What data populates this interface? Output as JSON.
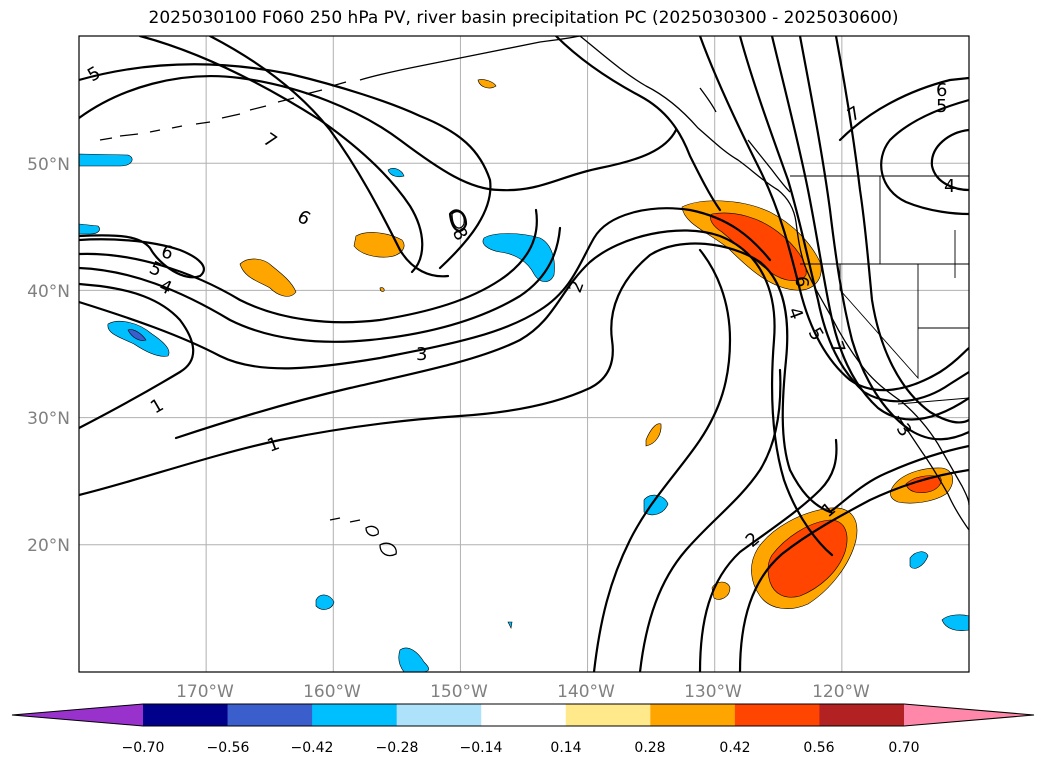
{
  "title": "2025030100 F060 250 hPa PV, river basin precipitation PC (2025030300 - 2025030600)",
  "map": {
    "lon_range": [
      -180,
      -110
    ],
    "lat_range": [
      10,
      60
    ],
    "lon_ticks": [
      {
        "value": -170,
        "label": "170°W"
      },
      {
        "value": -160,
        "label": "160°W"
      },
      {
        "value": -150,
        "label": "150°W"
      },
      {
        "value": -140,
        "label": "140°W"
      },
      {
        "value": -130,
        "label": "130°W"
      },
      {
        "value": -120,
        "label": "120°W"
      }
    ],
    "lat_ticks": [
      {
        "value": 20,
        "label": "20°N"
      },
      {
        "value": 30,
        "label": "30°N"
      },
      {
        "value": 40,
        "label": "40°N"
      },
      {
        "value": 50,
        "label": "50°N"
      }
    ],
    "grid": true,
    "contour_labels": [
      "1",
      "1",
      "1",
      "2",
      "2",
      "3",
      "3",
      "4",
      "4",
      "4",
      "5",
      "5",
      "5",
      "5",
      "6",
      "6",
      "6",
      "6",
      "7",
      "7",
      "7",
      "8"
    ]
  },
  "colorbar": {
    "labels": [
      "−0.70",
      "−0.56",
      "−0.42",
      "−0.28",
      "−0.14",
      "0.14",
      "0.28",
      "0.42",
      "0.56",
      "0.70"
    ],
    "levels": [
      -0.7,
      -0.56,
      -0.42,
      -0.28,
      -0.14,
      0.14,
      0.28,
      0.42,
      0.56,
      0.7
    ],
    "colors": [
      "#9932cc",
      "#00008b",
      "#3a5fcd",
      "#00bfff",
      "#aee2fa",
      "#ffffff",
      "#ffe98a",
      "#ffa500",
      "#ff4500",
      "#b22222",
      "#ff88aa"
    ],
    "extend": "both"
  }
}
